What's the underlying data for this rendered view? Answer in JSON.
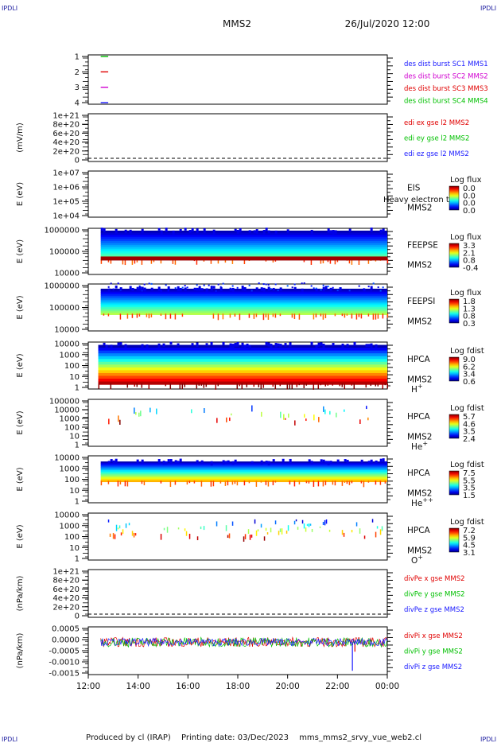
{
  "header": {
    "corner_left": "IPDLI",
    "corner_right": "IPDLI",
    "spacecraft": "MMS2",
    "date": "26/Jul/2020 12:00"
  },
  "footer": {
    "producer": "Produced by cl (IRAP)",
    "printing_date": "Printing date: 03/Dec/2023",
    "filename": "mms_mms2_srvy_vue_web2.cl",
    "corner_left": "IPDLI",
    "corner_right": "IPDLI"
  },
  "time_axis": {
    "ticks": [
      "12:00",
      "14:00",
      "16:00",
      "18:00",
      "20:00",
      "22:00",
      "00:00"
    ],
    "range_hours": [
      12,
      24
    ]
  },
  "colors": {
    "mms1": "#1a1aff",
    "mms2": "#d000d0",
    "mms3": "#e00000",
    "mms4": "#00c000",
    "x_comp": "#e00000",
    "y_comp": "#00c000",
    "z_comp": "#1a1aff"
  },
  "chart_data": [
    {
      "type": "line",
      "panel": "burst",
      "ylabel": "",
      "yticks": [
        "1",
        "2",
        "3",
        "4"
      ],
      "legend": [
        {
          "text": "des dist burst SC1 MMS1",
          "color": "#1a1aff"
        },
        {
          "text": "des dist burst SC2 MMS2",
          "color": "#d000d0"
        },
        {
          "text": "des dist burst SC3 MMS3",
          "color": "#e00000"
        },
        {
          "text": "des dist burst SC4 MMS4",
          "color": "#00c000"
        }
      ],
      "series": [
        {
          "level": 4,
          "color": "#00c000",
          "x": [
            12.5,
            12.8
          ]
        },
        {
          "level": 3,
          "color": "#e00000",
          "x": [
            12.5,
            12.8
          ]
        },
        {
          "level": 2,
          "color": "#d000d0",
          "x": [
            12.5,
            12.8
          ]
        },
        {
          "level": 1,
          "color": "#1a1aff",
          "x": [
            12.5,
            12.8
          ]
        }
      ]
    },
    {
      "type": "line",
      "panel": "edi",
      "ylabel": "(mV/m)",
      "yticks": [
        "1e+21",
        "8e+20",
        "6e+20",
        "4e+20",
        "2e+20",
        "0"
      ],
      "legend": [
        {
          "text": "edi ex gse l2 MMS2",
          "color": "#e00000"
        },
        {
          "text": "edi ey gse l2 MMS2",
          "color": "#00c000"
        },
        {
          "text": "edi ez gse l2 MMS2",
          "color": "#1a1aff"
        }
      ],
      "zero_line": true
    },
    {
      "type": "heatmap",
      "panel": "eis",
      "ylabel": "E (eV)",
      "yticks": [
        "1e+07",
        "1e+06",
        "1e+05",
        "1e+04"
      ],
      "instrument": "EIS",
      "spacecraft": "MMS2",
      "overlay_text": "Heavy electron to",
      "colorbar_title": "Log flux",
      "colorbar_ticks": [
        "0.0",
        "0.0",
        "0.0",
        "0.0"
      ],
      "band": null
    },
    {
      "type": "heatmap",
      "panel": "feepse",
      "ylabel": "E (eV)",
      "yticks": [
        "1000000",
        "100000",
        "10000"
      ],
      "instrument": "FEEPSE",
      "spacecraft": "MMS2",
      "colorbar_title": "Log flux",
      "colorbar_ticks": [
        "3.3",
        "2.1",
        "0.8",
        "-0.4"
      ],
      "band": {
        "x_start": 12.5,
        "x_end": 24.0,
        "y_top": 0.05,
        "y_bottom": 0.68,
        "level_top": 0.05,
        "level_bottom": 0.5,
        "bottom_strip": 1.0,
        "sparse": false
      }
    },
    {
      "type": "heatmap",
      "panel": "feepsi",
      "ylabel": "E (eV)",
      "yticks": [
        "1000000",
        "100000",
        "10000"
      ],
      "instrument": "FEEPSI",
      "spacecraft": "MMS2",
      "colorbar_title": "Log flux",
      "colorbar_ticks": [
        "1.8",
        "1.3",
        "0.8",
        "0.3"
      ],
      "band": {
        "x_start": 12.5,
        "x_end": 24.0,
        "y_top": 0.1,
        "y_bottom": 0.65,
        "level_top": 0.05,
        "level_bottom": 0.55,
        "sparse_top": true
      }
    },
    {
      "type": "heatmap",
      "panel": "hpca_h",
      "ylabel": "E (eV)",
      "yticks": [
        "10000",
        "1000",
        "100",
        "10",
        "1"
      ],
      "instrument": "HPCA",
      "spacecraft": "MMS2",
      "species": "H",
      "species_sup": "+",
      "colorbar_title": "Log fdist",
      "colorbar_ticks": [
        "9.0",
        "6.2",
        "3.4",
        "0.6"
      ],
      "band": {
        "x_start": 12.4,
        "x_end": 24.0,
        "y_top": 0.06,
        "y_bottom": 0.9,
        "level_top": 0.05,
        "level_bottom": 0.95
      }
    },
    {
      "type": "heatmap",
      "panel": "hpca_he",
      "ylabel": "E (eV)",
      "yticks": [
        "100000",
        "10000",
        "1000",
        "100",
        "10",
        "1"
      ],
      "instrument": "HPCA",
      "spacecraft": "MMS2",
      "species": "He",
      "species_sup": "+",
      "colorbar_title": "Log fdist",
      "colorbar_ticks": [
        "5.7",
        "4.6",
        "3.5",
        "2.4"
      ],
      "band": {
        "x_start": 12.8,
        "x_end": 23.8,
        "y_top": 0.1,
        "y_bottom": 0.45,
        "scatter": true,
        "density": 0.03
      }
    },
    {
      "type": "heatmap",
      "panel": "hpca_hepp",
      "ylabel": "E (eV)",
      "yticks": [
        "10000",
        "1000",
        "100",
        "10",
        "1"
      ],
      "instrument": "HPCA",
      "spacecraft": "MMS2",
      "species": "He",
      "species_sup": "++",
      "colorbar_title": "Log fdist",
      "colorbar_ticks": [
        "7.5",
        "5.5",
        "3.5",
        "1.5"
      ],
      "band": {
        "x_start": 12.5,
        "x_end": 24.0,
        "y_top": 0.12,
        "y_bottom": 0.55,
        "level_top": 0.05,
        "level_bottom": 0.7
      }
    },
    {
      "type": "heatmap",
      "panel": "hpca_o",
      "ylabel": "E (eV)",
      "yticks": [
        "10000",
        "1000",
        "100",
        "10",
        "1"
      ],
      "instrument": "HPCA",
      "spacecraft": "MMS2",
      "species": "O",
      "species_sup": "+",
      "colorbar_title": "Log fdist",
      "colorbar_ticks": [
        "7.2",
        "5.9",
        "4.5",
        "3.1"
      ],
      "band": {
        "x_start": 12.6,
        "x_end": 23.8,
        "y_top": 0.12,
        "y_bottom": 0.5,
        "scatter": true,
        "density": 0.07
      }
    },
    {
      "type": "line",
      "panel": "divpe",
      "ylabel": "(nPa/km)",
      "yticks": [
        "1e+21",
        "8e+20",
        "6e+20",
        "4e+20",
        "2e+20",
        "0"
      ],
      "legend": [
        {
          "text": "divPe x gse MMS2",
          "color": "#e00000"
        },
        {
          "text": "divPe y gse MMS2",
          "color": "#00c000"
        },
        {
          "text": "divPe z gse MMS2",
          "color": "#1a1aff"
        }
      ],
      "zero_line": true
    },
    {
      "type": "line",
      "panel": "divpi",
      "ylabel": "(nPa/km)",
      "yticks": [
        "0.0005",
        "0.0000",
        "-0.0005",
        "-0.0010",
        "-0.0015"
      ],
      "ylim": [
        -0.0017,
        0.0008
      ],
      "legend": [
        {
          "text": "divPi x gse MMS2",
          "color": "#e00000"
        },
        {
          "text": "divPi y gse MMS2",
          "color": "#00c000"
        },
        {
          "text": "divPi z gse MMS2",
          "color": "#1a1aff"
        }
      ],
      "series": [
        {
          "name": "divPi x gse MMS2",
          "color": "#e00000",
          "amplitude": 0.00025,
          "spike_hour": 22.7,
          "spike_value": -0.0005
        },
        {
          "name": "divPi y gse MMS2",
          "color": "#00c000",
          "amplitude": 0.00025
        },
        {
          "name": "divPi z gse MMS2",
          "color": "#1a1aff",
          "amplitude": 0.0002,
          "spike_hour": 22.6,
          "spike_value": -0.0015
        }
      ]
    }
  ]
}
